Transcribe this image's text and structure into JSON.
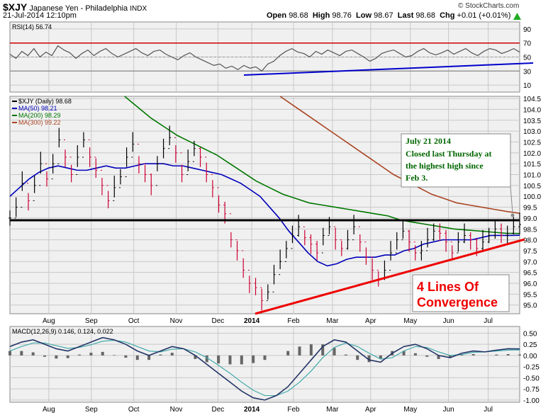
{
  "header": {
    "symbol": "$XJY",
    "name": "Japanese Yen - Philadelphia",
    "exchange": "INDX",
    "date": "21-Jul-2014 12:10pm",
    "watermark": "© StockCharts.com",
    "open_label": "Open",
    "open": "98.68",
    "high_label": "High",
    "high": "98.76",
    "low_label": "Low",
    "low": "98.67",
    "last_label": "Last",
    "last": "98.68",
    "chg_label": "Chg",
    "chg": "+0.01 (+0.01%)",
    "up_arrow_icon": "green-triangle-up-icon"
  },
  "colors": {
    "price_up": "#000000",
    "price_down": "#cc0033",
    "ma50": "#0000bb",
    "ma200": "#007700",
    "ma300": "#aa4422",
    "rsi": "#555555",
    "rsi_line_red": "#cc0000",
    "trend_blue": "#0000cc",
    "trend_red": "#ee0000",
    "panel_bg": "#f0f0f0",
    "grid": "#c8c8c8",
    "annotation_green": "#006600"
  },
  "chart_data": [
    {
      "type": "line",
      "panel": "rsi",
      "legend": "RSI(14) 56.74",
      "ylim": [
        0,
        100
      ],
      "yticks": [
        10,
        30,
        50,
        70,
        90
      ],
      "overbought": 70,
      "oversold": 30,
      "series": [
        {
          "values": [
            54,
            48,
            58,
            52,
            62,
            50,
            57,
            52,
            66,
            60,
            56,
            48,
            55,
            60,
            52,
            58,
            62,
            55,
            50,
            54,
            58,
            62,
            56,
            52,
            58,
            60,
            54,
            50,
            46,
            52,
            56,
            50,
            46,
            42,
            38,
            40,
            34,
            37,
            32,
            38,
            34,
            36,
            30,
            40,
            44,
            52,
            58,
            62,
            57,
            55,
            50,
            58,
            54,
            60,
            56,
            52,
            58,
            60,
            55,
            50,
            44,
            48,
            55,
            58,
            60,
            55,
            50,
            52,
            58,
            62,
            56,
            53,
            56,
            60,
            54,
            58,
            62,
            56,
            52,
            58,
            62,
            60,
            55,
            58,
            62,
            57
          ]
        }
      ]
    },
    {
      "type": "line",
      "panel": "price",
      "legend": [
        {
          "name": "$XJY (Daily) 98.68",
          "key": "price"
        },
        {
          "name": "MA(50) 98.21",
          "key": "ma50"
        },
        {
          "name": "MA(200) 98.29",
          "key": "ma200"
        },
        {
          "name": "MA(300) 99.22",
          "key": "ma300"
        }
      ],
      "ylim": [
        94.6,
        104.6
      ],
      "yticks": [
        "95.0",
        "95.5",
        "96.0",
        "96.5",
        "97.0",
        "97.5",
        "98.0",
        "98.5",
        "99.0",
        "99.5",
        "100.0",
        "100.5",
        "101.0",
        "101.5",
        "102.0",
        "102.5",
        "103.0",
        "103.5",
        "104.0",
        "104.5"
      ],
      "x_labels": [
        "Aug",
        "Sep",
        "Oct",
        "Nov",
        "Dec",
        "2014",
        "Feb",
        "Mar",
        "Apr",
        "May",
        "Jun",
        "Jul"
      ],
      "x_label_pos": [
        0.0763,
        0.1596,
        0.2429,
        0.3262,
        0.4081,
        0.4744,
        0.5563,
        0.6327,
        0.7077,
        0.7855,
        0.8604,
        0.9383
      ],
      "series": [
        {
          "key": "price",
          "values": [
            99.0,
            99.5,
            100.6,
            99.8,
            100.5,
            101.5,
            100.8,
            101.5,
            102.6,
            101.8,
            101.0,
            101.8,
            102.6,
            101.8,
            101.2,
            100.5,
            99.8,
            100.4,
            100.9,
            101.8,
            102.4,
            101.5,
            101.0,
            100.5,
            101.5,
            102.2,
            102.7,
            102.0,
            101.0,
            101.6,
            102.2,
            101.8,
            101.0,
            100.4,
            99.6,
            99.2,
            98.0,
            97.5,
            96.6,
            96.0,
            95.8,
            95.2,
            95.6,
            96.4,
            97.0,
            97.6,
            98.2,
            98.6,
            98.1,
            97.8,
            97.4,
            98.2,
            98.6,
            98.0,
            97.6,
            98.0,
            98.6,
            97.9,
            97.2,
            96.6,
            96.2,
            96.6,
            97.4,
            98.0,
            98.4,
            97.9,
            97.4,
            97.5,
            98.0,
            98.4,
            98.3,
            97.9,
            97.4,
            97.9,
            98.2,
            98.0,
            97.6,
            97.9,
            98.2,
            98.5,
            98.2,
            98.3,
            98.6,
            98.7
          ]
        },
        {
          "key": "ma50",
          "values": [
            100.0,
            100.4,
            100.8,
            101.1,
            101.3,
            101.4,
            101.3,
            101.2,
            101.2,
            101.3,
            101.4,
            101.3,
            101.3,
            101.4,
            101.5,
            101.5,
            101.5,
            101.4,
            101.4,
            101.3,
            101.2,
            101.1,
            101.0,
            100.8,
            100.6,
            100.3,
            100.0,
            99.5,
            99.0,
            98.4,
            97.9,
            97.4,
            97.0,
            96.8,
            96.9,
            97.1,
            97.2,
            97.2,
            97.2,
            97.3,
            97.3,
            97.5,
            97.6,
            97.8,
            97.9,
            98.0,
            98.0,
            98.0,
            98.0,
            98.1,
            98.2,
            98.2,
            98.2,
            98.21
          ]
        },
        {
          "key": "ma200",
          "values": [
            104.6,
            104.1,
            103.6,
            103.2,
            102.8,
            102.5,
            102.2,
            101.9,
            101.5,
            101.1,
            100.7,
            100.4,
            100.1,
            99.9,
            99.7,
            99.6,
            99.5,
            99.4,
            99.3,
            99.2,
            99.1,
            98.9,
            98.8,
            98.7,
            98.6,
            98.5,
            98.45,
            98.4,
            98.35,
            98.3,
            98.29
          ]
        },
        {
          "key": "ma300",
          "values": [
            104.6,
            104.2,
            103.8,
            103.4,
            103.0,
            102.6,
            102.2,
            101.8,
            101.4,
            101.0,
            100.7,
            100.4,
            100.1,
            99.9,
            99.7,
            99.6,
            99.5,
            99.4,
            99.3,
            99.22
          ]
        }
      ],
      "annotation_title": "July 21 2014",
      "annotation_text": [
        "Closed last Thursday at",
        "the highest high since",
        "Feb 3."
      ],
      "callout": [
        "4 Lines Of",
        "Convergence"
      ],
      "horizontal_line": 98.9
    },
    {
      "type": "line",
      "panel": "macd",
      "legend": "MACD(12,26,9) 0.146, 0.124, 0.022",
      "ylim": [
        -1.05,
        0.65
      ],
      "yticks": [
        "0.50",
        "0.25",
        "0.00",
        "-0.25",
        "-0.50",
        "-0.75",
        "-1.00"
      ],
      "x_labels": [
        "Aug",
        "Sep",
        "Oct",
        "Nov",
        "Dec",
        "2014",
        "Feb",
        "Mar",
        "Apr",
        "May",
        "Jun",
        "Jul"
      ],
      "series": [
        {
          "key": "macd",
          "values": [
            0.2,
            0.3,
            0.35,
            0.25,
            0.15,
            0.1,
            0.2,
            0.3,
            0.4,
            0.35,
            0.25,
            0.1,
            0.0,
            0.1,
            0.2,
            0.15,
            0.0,
            -0.2,
            -0.4,
            -0.6,
            -0.8,
            -0.95,
            -1.0,
            -0.9,
            -0.7,
            -0.4,
            -0.1,
            0.2,
            0.35,
            0.3,
            0.1,
            -0.1,
            -0.15,
            0.05,
            0.2,
            0.25,
            0.15,
            0.0,
            -0.05,
            0.05,
            0.1,
            0.08,
            0.12,
            0.15,
            0.146
          ]
        },
        {
          "key": "signal",
          "values": [
            0.1,
            0.2,
            0.28,
            0.28,
            0.22,
            0.16,
            0.18,
            0.24,
            0.32,
            0.34,
            0.3,
            0.2,
            0.1,
            0.08,
            0.14,
            0.15,
            0.08,
            -0.05,
            -0.22,
            -0.4,
            -0.6,
            -0.78,
            -0.9,
            -0.9,
            -0.8,
            -0.6,
            -0.35,
            -0.05,
            0.18,
            0.28,
            0.2,
            0.05,
            -0.08,
            -0.05,
            0.1,
            0.2,
            0.18,
            0.08,
            0.0,
            0.02,
            0.07,
            0.08,
            0.1,
            0.12,
            0.124
          ]
        }
      ]
    }
  ]
}
